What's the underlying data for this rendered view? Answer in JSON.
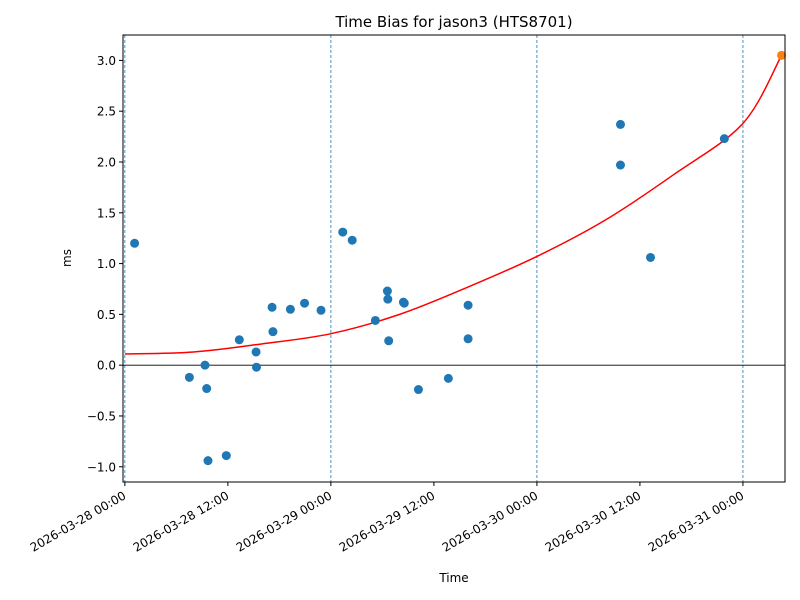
{
  "chart_data": {
    "type": "scatter",
    "title": "Time Bias for jason3 (HTS8701)",
    "xlabel": "Time",
    "ylabel": "ms",
    "xlim": [
      "2026-03-27 23:47",
      "2026-03-31 04:54"
    ],
    "ylim": [
      -1.15,
      3.25
    ],
    "yticks": [
      -1.0,
      -0.5,
      0.0,
      0.5,
      1.0,
      1.5,
      2.0,
      2.5,
      3.0
    ],
    "ytick_labels": [
      "−1.0",
      "−0.5",
      "0.0",
      "0.5",
      "1.0",
      "1.5",
      "2.0",
      "2.5",
      "3.0"
    ],
    "xticks": [
      "2026-03-28 00:00",
      "2026-03-28 12:00",
      "2026-03-29 00:00",
      "2026-03-29 12:00",
      "2026-03-30 00:00",
      "2026-03-30 12:00",
      "2026-03-31 00:00"
    ],
    "xtick_labels": [
      "2026-03-28 00:00",
      "2026-03-28 12:00",
      "2026-03-29 00:00",
      "2026-03-29 12:00",
      "2026-03-30 00:00",
      "2026-03-30 12:00",
      "2026-03-31 00:00"
    ],
    "vertical_grid_at": [
      "2026-03-28 00:00",
      "2026-03-29 00:00",
      "2026-03-30 00:00",
      "2026-03-31 00:00"
    ],
    "zero_line": 0,
    "colors": {
      "points": "#1f77b4",
      "fit": "#ff0000",
      "last_point": "#ff7f0e",
      "grid": "#1f77b4"
    },
    "series": [
      {
        "marker": "circle",
        "color": "#1f77b4",
        "points": [
          {
            "x": "2026-03-28 01:08",
            "y": 1.2
          },
          {
            "x": "2026-03-28 07:31",
            "y": -0.12
          },
          {
            "x": "2026-03-28 09:20",
            "y": 0.0
          },
          {
            "x": "2026-03-28 09:32",
            "y": -0.23
          },
          {
            "x": "2026-03-28 09:41",
            "y": -0.94
          },
          {
            "x": "2026-03-28 11:49",
            "y": -0.89
          },
          {
            "x": "2026-03-28 13:20",
            "y": 0.25
          },
          {
            "x": "2026-03-28 15:17",
            "y": 0.13
          },
          {
            "x": "2026-03-28 15:20",
            "y": -0.02
          },
          {
            "x": "2026-03-28 17:09",
            "y": 0.57
          },
          {
            "x": "2026-03-28 17:15",
            "y": 0.33
          },
          {
            "x": "2026-03-28 19:17",
            "y": 0.55
          },
          {
            "x": "2026-03-28 20:56",
            "y": 0.61
          },
          {
            "x": "2026-03-28 22:51",
            "y": 0.54
          },
          {
            "x": "2026-03-29 01:23",
            "y": 1.31
          },
          {
            "x": "2026-03-29 02:29",
            "y": 1.23
          },
          {
            "x": "2026-03-29 05:11",
            "y": 0.44
          },
          {
            "x": "2026-03-29 06:35",
            "y": 0.73
          },
          {
            "x": "2026-03-29 06:38",
            "y": 0.65
          },
          {
            "x": "2026-03-29 06:44",
            "y": 0.24
          },
          {
            "x": "2026-03-29 08:27",
            "y": 0.62
          },
          {
            "x": "2026-03-29 08:33",
            "y": 0.61
          },
          {
            "x": "2026-03-29 10:12",
            "y": -0.24
          },
          {
            "x": "2026-03-29 13:41",
            "y": -0.13
          },
          {
            "x": "2026-03-29 15:59",
            "y": 0.59
          },
          {
            "x": "2026-03-29 15:59",
            "y": 0.26
          },
          {
            "x": "2026-03-30 09:44",
            "y": 2.37
          },
          {
            "x": "2026-03-30 09:44",
            "y": 1.97
          },
          {
            "x": "2026-03-30 13:14",
            "y": 1.06
          },
          {
            "x": "2026-03-30 21:50",
            "y": 2.23
          }
        ]
      },
      {
        "marker": "circle",
        "color": "#ff7f0e",
        "points": [
          {
            "x": "2026-03-31 04:30",
            "y": 3.05
          }
        ]
      }
    ],
    "fit_curve": {
      "color": "#ff0000",
      "x_start": "2026-03-28 00:00",
      "x_end": "2026-03-31 04:30",
      "points": [
        {
          "x": "2026-03-28 00:00",
          "y": 0.11
        },
        {
          "x": "2026-03-28 08:00",
          "y": 0.13
        },
        {
          "x": "2026-03-28 16:00",
          "y": 0.21
        },
        {
          "x": "2026-03-29 00:00",
          "y": 0.31
        },
        {
          "x": "2026-03-29 08:00",
          "y": 0.5
        },
        {
          "x": "2026-03-29 16:00",
          "y": 0.77
        },
        {
          "x": "2026-03-30 00:00",
          "y": 1.07
        },
        {
          "x": "2026-03-30 08:00",
          "y": 1.43
        },
        {
          "x": "2026-03-30 16:00",
          "y": 1.88
        },
        {
          "x": "2026-03-31 00:00",
          "y": 2.38
        },
        {
          "x": "2026-03-31 04:30",
          "y": 3.05
        }
      ]
    }
  }
}
